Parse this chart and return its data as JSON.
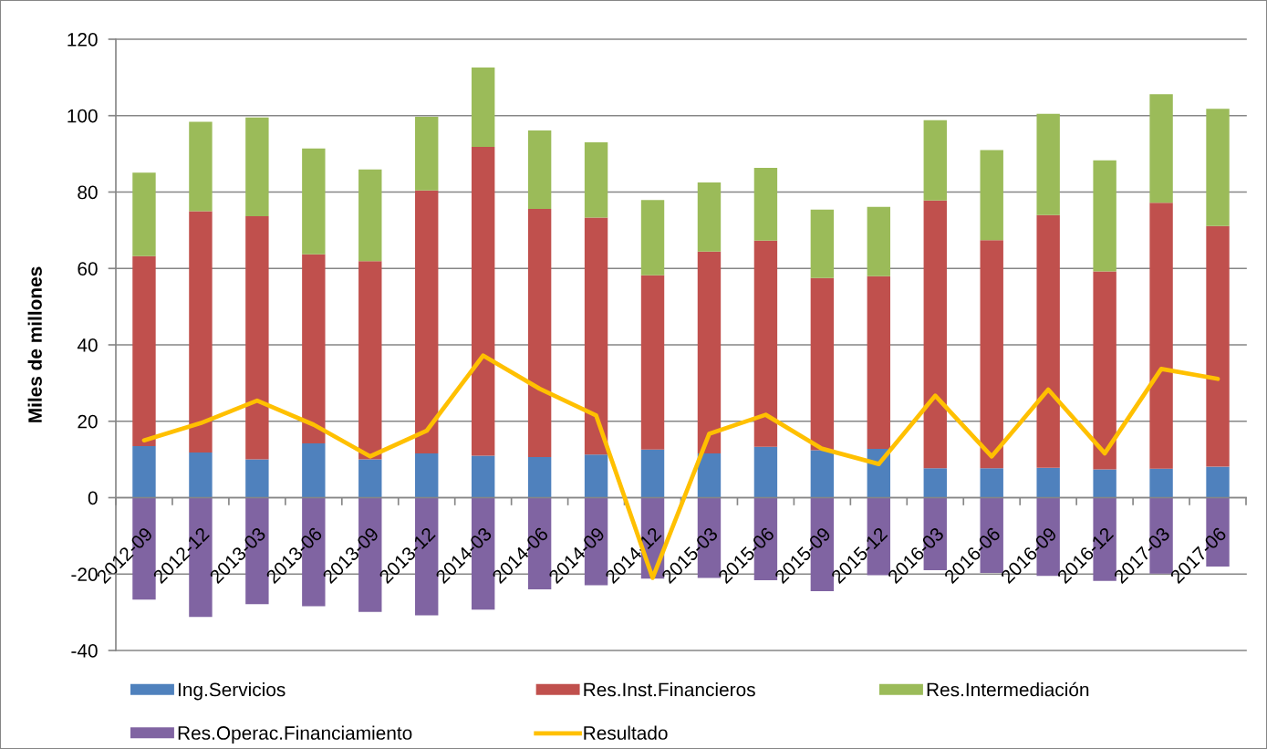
{
  "chart_data": {
    "type": "bar",
    "stacked": true,
    "ylabel": "Miles de millones",
    "categories": [
      "2012-09",
      "2012-12",
      "2013-03",
      "2013-06",
      "2013-09",
      "2013-12",
      "2014-03",
      "2014-06",
      "2014-09",
      "2014-12",
      "2015-03",
      "2015-06",
      "2015-09",
      "2015-12",
      "2016-03",
      "2016-06",
      "2016-09",
      "2016-12",
      "2017-03",
      "2017-06"
    ],
    "series": [
      {
        "name": "Ing.Servicios",
        "color": "#4f81bd",
        "values": [
          13.5,
          11.8,
          10.0,
          14.2,
          10.0,
          11.6,
          11.0,
          10.6,
          11.3,
          12.6,
          11.6,
          13.3,
          12.4,
          12.8,
          7.7,
          7.7,
          7.8,
          7.4,
          7.6,
          8.1
        ]
      },
      {
        "name": "Res.Inst.Financieros",
        "color": "#c0504d",
        "values": [
          49.7,
          63.2,
          63.7,
          49.5,
          51.9,
          68.8,
          80.8,
          65.0,
          62.0,
          45.6,
          52.8,
          54.0,
          45.1,
          45.2,
          70.1,
          59.7,
          66.2,
          51.8,
          69.6,
          63.0
        ]
      },
      {
        "name": "Res.Intermediación",
        "color": "#9bbb59",
        "values": [
          21.9,
          23.4,
          25.8,
          27.7,
          24.0,
          19.3,
          20.8,
          20.5,
          19.7,
          19.7,
          18.1,
          19.0,
          17.9,
          18.1,
          21.0,
          23.6,
          26.5,
          29.1,
          28.4,
          30.7
        ]
      },
      {
        "name": "Res.Operac.Financiamiento",
        "color": "#8064a2",
        "values": [
          -26.7,
          -31.2,
          -27.9,
          -28.4,
          -29.9,
          -30.8,
          -29.3,
          -24.0,
          -22.9,
          -21.2,
          -21.0,
          -21.6,
          -24.5,
          -20.3,
          -19.0,
          -19.7,
          -20.5,
          -21.8,
          -19.9,
          -18.0
        ]
      },
      {
        "name": "Resultado",
        "type": "line",
        "color": "#ffc000",
        "values": [
          15.0,
          19.5,
          25.4,
          19.1,
          10.8,
          17.5,
          37.2,
          28.5,
          21.5,
          -21.0,
          16.7,
          21.7,
          12.8,
          8.8,
          26.7,
          10.8,
          28.3,
          11.6,
          33.7,
          31.1
        ]
      }
    ],
    "ylim": [
      -40,
      120
    ],
    "yticks": [
      -40,
      -20,
      0,
      20,
      40,
      60,
      80,
      100,
      120
    ],
    "grid": "y",
    "legend": "bottom"
  }
}
